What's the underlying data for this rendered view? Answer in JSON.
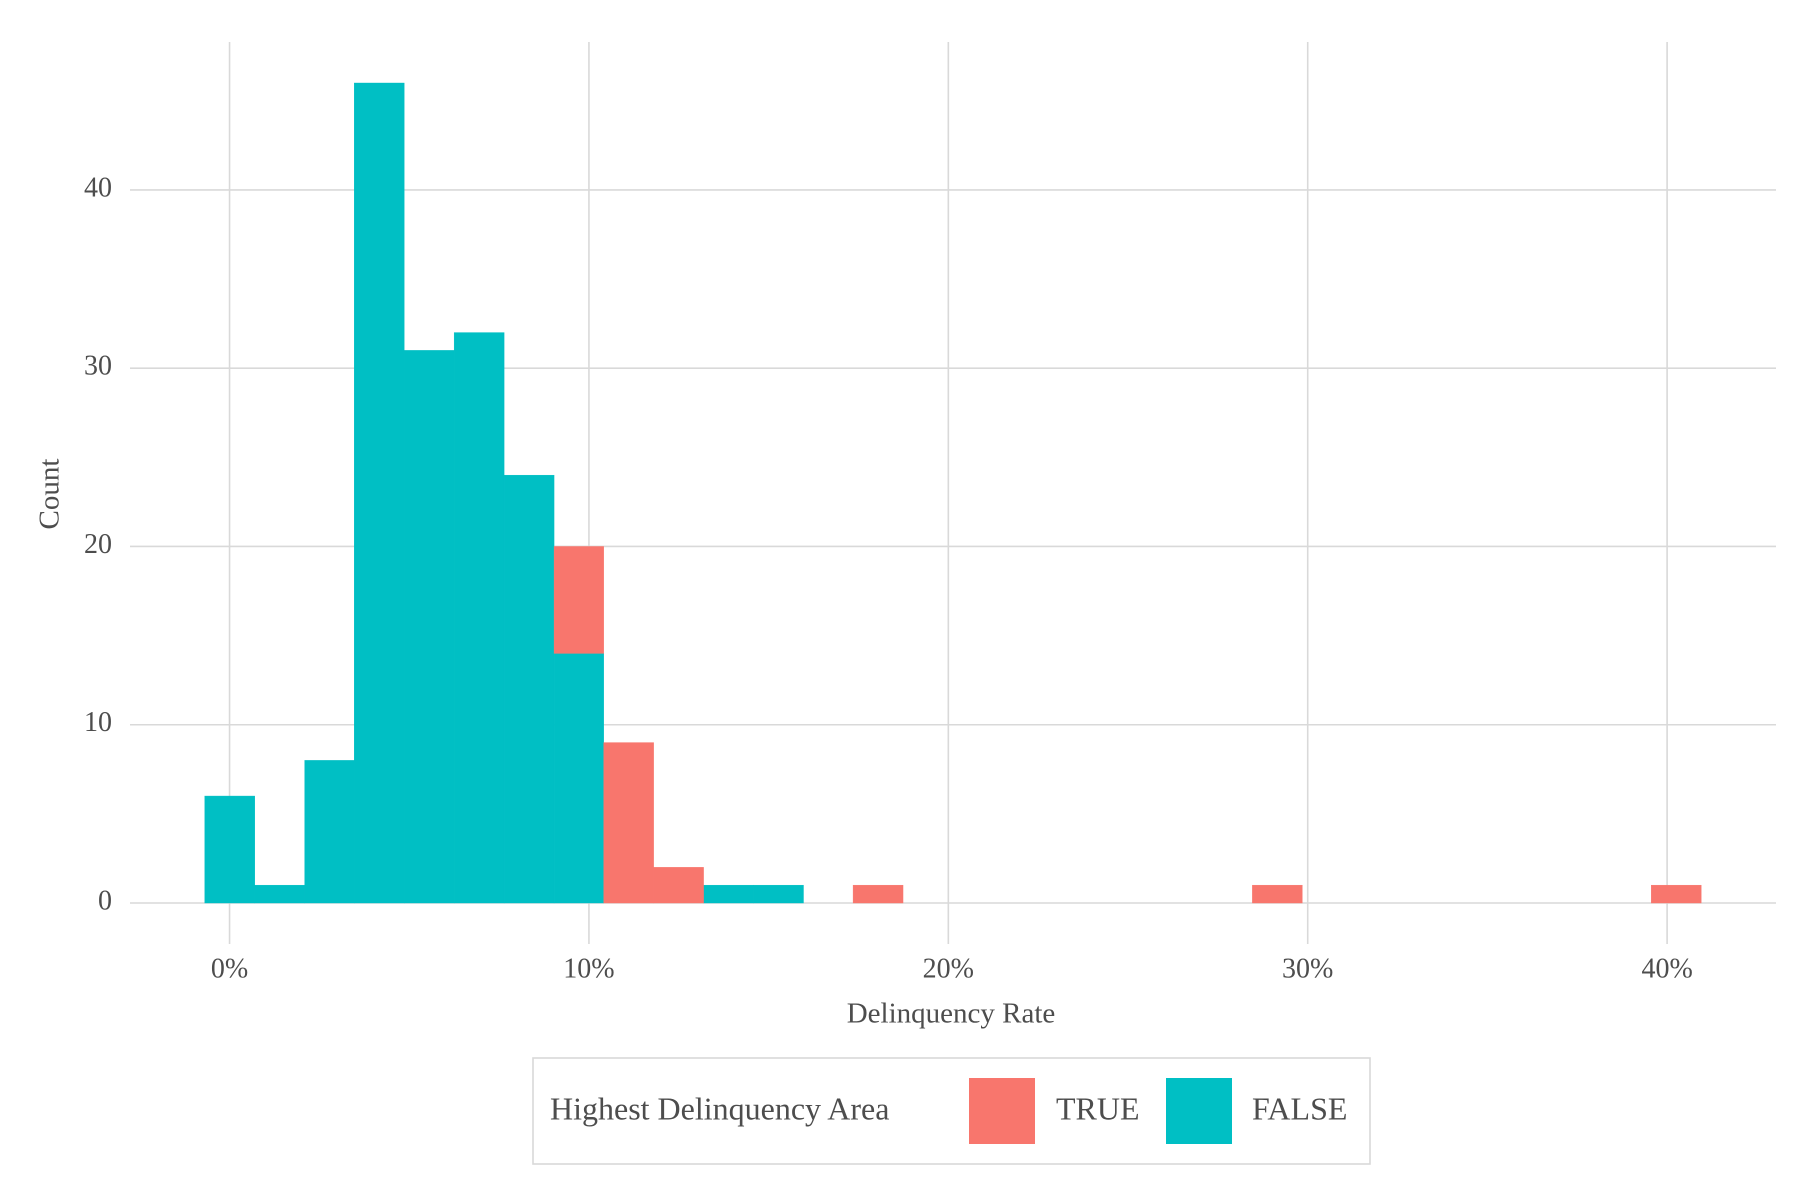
{
  "chart_data": {
    "type": "histogram",
    "x_label": "Delinquency Rate",
    "y_label": "Count",
    "legend_title": "Highest Delinquency Area",
    "legend_position": "bottom",
    "grid": true,
    "bins": [
      -0.69,
      0.7,
      2.09,
      3.47,
      4.86,
      6.25,
      7.64,
      9.03,
      10.41,
      11.8,
      13.19,
      14.58,
      15.97,
      17.35,
      18.74,
      20.13,
      21.52,
      22.91,
      24.29,
      25.68,
      27.07,
      28.46,
      29.85,
      31.23,
      32.62,
      34.01,
      35.4,
      36.79,
      38.17,
      39.56,
      40.95
    ],
    "series": [
      {
        "name": "TRUE",
        "color": "#F8766D",
        "values": [
          0,
          0,
          0,
          0,
          0,
          0,
          0,
          6,
          9,
          2,
          0,
          0,
          0,
          1,
          0,
          0,
          0,
          0,
          0,
          0,
          0,
          1,
          0,
          0,
          0,
          0,
          0,
          0,
          0,
          1
        ]
      },
      {
        "name": "FALSE",
        "color": "#00BFC4",
        "values": [
          6,
          1,
          8,
          46,
          31,
          32,
          24,
          14,
          0,
          0,
          1,
          1,
          0,
          0,
          0,
          0,
          0,
          0,
          0,
          0,
          0,
          0,
          0,
          0,
          0,
          0,
          0,
          0,
          0,
          0
        ]
      }
    ],
    "xlim": [
      -2.77,
      43.03
    ],
    "ylim": [
      -2.3,
      48.3
    ],
    "xticks": [
      {
        "value": 0,
        "label": "0%"
      },
      {
        "value": 10,
        "label": "10%"
      },
      {
        "value": 20,
        "label": "20%"
      },
      {
        "value": 30,
        "label": "30%"
      },
      {
        "value": 40,
        "label": "40%"
      }
    ],
    "yticks": [
      0,
      10,
      20,
      30,
      40
    ]
  }
}
